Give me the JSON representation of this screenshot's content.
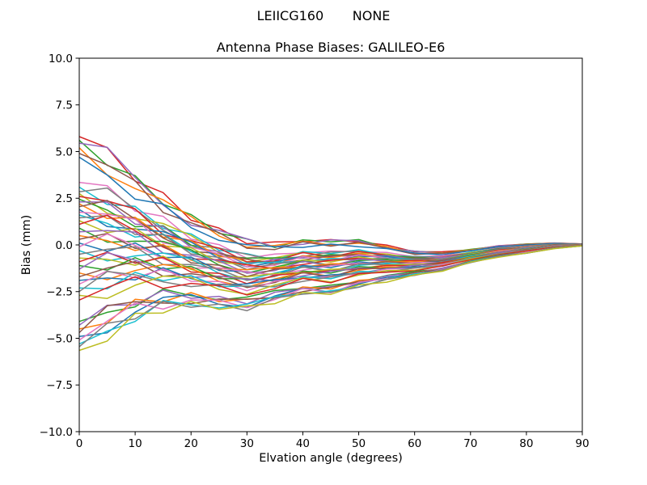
{
  "chart_data": {
    "type": "line",
    "suptitle": "LEIICG160       NONE",
    "title": "Antenna Phase Biases: GALILEO-E6",
    "xlabel": "Elvation angle (degrees)",
    "ylabel": "Bias (mm)",
    "xlim": [
      0,
      90
    ],
    "ylim": [
      -10.0,
      10.0
    ],
    "x_ticks": [
      0,
      10,
      20,
      30,
      40,
      50,
      60,
      70,
      80,
      90
    ],
    "x_tick_labels": [
      "0",
      "10",
      "20",
      "30",
      "40",
      "50",
      "60",
      "70",
      "80",
      "90"
    ],
    "y_ticks": [
      10.0,
      7.5,
      5.0,
      2.5,
      0.0,
      -2.5,
      -5.0,
      -7.5,
      -10.0
    ],
    "y_tick_labels": [
      "10.0",
      "7.5",
      "5.0",
      "2.5",
      "0.0",
      "−2.5",
      "−5.0",
      "−7.5",
      "−10.0"
    ],
    "grid": false,
    "legend": "none",
    "line_width": 1.5,
    "series_note": "About 50 unlabeled per-satellite bias curves spread between -5.7 and +5.8 mm at 0 deg, dipping to about -3.7 mm near 20-30 deg, small hump near 45-50 deg, all converging to 0 mm at 90 deg. Values below are estimated from pixels.",
    "x": [
      0,
      5,
      10,
      15,
      20,
      25,
      30,
      35,
      40,
      45,
      50,
      55,
      60,
      65,
      70,
      75,
      80,
      85,
      90
    ],
    "band_center": [
      0.0,
      0.0,
      -0.2,
      -0.5,
      -0.9,
      -1.3,
      -1.6,
      -1.5,
      -1.2,
      -1.2,
      -1.0,
      -1.0,
      -1.0,
      -0.9,
      -0.6,
      -0.35,
      -0.2,
      -0.05,
      0.0
    ],
    "band_halfwidth": [
      5.8,
      4.85,
      3.8,
      3.0,
      2.4,
      2.1,
      1.85,
      1.55,
      1.45,
      1.45,
      1.25,
      0.95,
      0.65,
      0.5,
      0.35,
      0.3,
      0.25,
      0.15,
      0.05
    ],
    "wiggle_amplitude": 0.25,
    "wiggle_patterns": [
      [
        0,
        0.3,
        -0.2,
        0.4,
        -0.3,
        0.2,
        -0.4,
        0.3,
        -0.2,
        0.1,
        -0.3,
        0.2,
        -0.1,
        0.3,
        -0.2,
        0.1,
        -0.1,
        0.05,
        0
      ],
      [
        0,
        -0.35,
        0.25,
        -0.3,
        0.35,
        -0.2,
        0.3,
        -0.35,
        0.2,
        -0.1,
        0.25,
        -0.3,
        0.2,
        -0.15,
        0.25,
        -0.2,
        0.1,
        -0.05,
        0
      ],
      [
        0,
        0.55,
        0.25,
        -0.25,
        -0.5,
        0.2,
        0.4,
        -0.15,
        -0.35,
        0.3,
        0.15,
        -0.25,
        0.35,
        -0.2,
        -0.1,
        0.25,
        -0.15,
        0.1,
        0
      ],
      [
        0,
        -0.5,
        -0.2,
        0.3,
        0.45,
        -0.2,
        -0.4,
        0.2,
        0.3,
        -0.3,
        -0.1,
        0.3,
        -0.3,
        0.15,
        0.2,
        -0.25,
        0.15,
        -0.1,
        0
      ],
      [
        0,
        0.15,
        0.45,
        -0.4,
        0.1,
        0.35,
        -0.3,
        -0.15,
        0.4,
        -0.25,
        0.3,
        0.1,
        -0.35,
        0.25,
        -0.15,
        -0.2,
        0.2,
        -0.1,
        0
      ],
      [
        0,
        -0.15,
        -0.45,
        0.35,
        -0.2,
        -0.3,
        0.25,
        0.4,
        -0.3,
        0.2,
        -0.35,
        0.15,
        0.25,
        -0.3,
        0.1,
        0.2,
        -0.2,
        0.1,
        0
      ]
    ],
    "palette": [
      "#d62728",
      "#2ca02c",
      "#9467bd",
      "#ff7f0e",
      "#8c564b",
      "#1f77b4",
      "#e377c2",
      "#17becf",
      "#7f7f7f",
      "#bcbd22"
    ],
    "series": [
      {
        "y0": 5.8,
        "a": 1.0,
        "color": "#d62728",
        "wiggle": 0
      },
      {
        "y0": 5.6,
        "a": 0.966,
        "color": "#2ca02c",
        "wiggle": 1
      },
      {
        "y0": 5.45,
        "a": 0.94,
        "color": "#9467bd",
        "wiggle": 2
      },
      {
        "y0": 5.2,
        "a": 0.897,
        "color": "#ff7f0e",
        "wiggle": 3
      },
      {
        "y0": 4.9,
        "a": 0.845,
        "color": "#8c564b",
        "wiggle": 4
      },
      {
        "y0": 4.7,
        "a": 0.81,
        "color": "#1f77b4",
        "wiggle": 5
      },
      {
        "y0": 3.35,
        "a": 0.578,
        "color": "#e377c2",
        "wiggle": 0
      },
      {
        "y0": 3.1,
        "a": 0.534,
        "color": "#17becf",
        "wiggle": 1
      },
      {
        "y0": 2.85,
        "a": 0.491,
        "color": "#7f7f7f",
        "wiggle": 2
      },
      {
        "y0": 2.75,
        "a": 0.474,
        "color": "#bcbd22",
        "wiggle": 3
      },
      {
        "y0": 2.6,
        "a": 0.448,
        "color": "#d62728",
        "wiggle": 4
      },
      {
        "y0": 2.45,
        "a": 0.422,
        "color": "#2ca02c",
        "wiggle": 5
      },
      {
        "y0": 2.3,
        "a": 0.397,
        "color": "#9467bd",
        "wiggle": 0
      },
      {
        "y0": 2.2,
        "a": 0.379,
        "color": "#ff7f0e",
        "wiggle": 1
      },
      {
        "y0": 2.05,
        "a": 0.353,
        "color": "#8c564b",
        "wiggle": 2
      },
      {
        "y0": 1.9,
        "a": 0.328,
        "color": "#1f77b4",
        "wiggle": 3
      },
      {
        "y0": 1.75,
        "a": 0.302,
        "color": "#e377c2",
        "wiggle": 4
      },
      {
        "y0": 1.6,
        "a": 0.276,
        "color": "#17becf",
        "wiggle": 5
      },
      {
        "y0": 1.45,
        "a": 0.25,
        "color": "#7f7f7f",
        "wiggle": 0
      },
      {
        "y0": 1.3,
        "a": 0.224,
        "color": "#bcbd22",
        "wiggle": 1
      },
      {
        "y0": 1.1,
        "a": 0.19,
        "color": "#d62728",
        "wiggle": 2
      },
      {
        "y0": 0.9,
        "a": 0.155,
        "color": "#2ca02c",
        "wiggle": 3
      },
      {
        "y0": 0.7,
        "a": 0.121,
        "color": "#9467bd",
        "wiggle": 4
      },
      {
        "y0": 0.5,
        "a": 0.086,
        "color": "#ff7f0e",
        "wiggle": 5
      },
      {
        "y0": 0.3,
        "a": 0.052,
        "color": "#8c564b",
        "wiggle": 0
      },
      {
        "y0": 0.1,
        "a": 0.017,
        "color": "#1f77b4",
        "wiggle": 1
      },
      {
        "y0": -0.1,
        "a": -0.017,
        "color": "#e377c2",
        "wiggle": 2
      },
      {
        "y0": -0.3,
        "a": -0.052,
        "color": "#17becf",
        "wiggle": 3
      },
      {
        "y0": -0.5,
        "a": -0.086,
        "color": "#7f7f7f",
        "wiggle": 4
      },
      {
        "y0": -0.7,
        "a": -0.121,
        "color": "#bcbd22",
        "wiggle": 5
      },
      {
        "y0": -0.9,
        "a": -0.155,
        "color": "#d62728",
        "wiggle": 0
      },
      {
        "y0": -1.1,
        "a": -0.19,
        "color": "#2ca02c",
        "wiggle": 1
      },
      {
        "y0": -1.3,
        "a": -0.224,
        "color": "#9467bd",
        "wiggle": 2
      },
      {
        "y0": -1.5,
        "a": -0.259,
        "color": "#ff7f0e",
        "wiggle": 3
      },
      {
        "y0": -1.7,
        "a": -0.293,
        "color": "#8c564b",
        "wiggle": 4
      },
      {
        "y0": -1.9,
        "a": -0.328,
        "color": "#1f77b4",
        "wiggle": 5
      },
      {
        "y0": -2.1,
        "a": -0.362,
        "color": "#e377c2",
        "wiggle": 0
      },
      {
        "y0": -2.3,
        "a": -0.397,
        "color": "#17becf",
        "wiggle": 1
      },
      {
        "y0": -2.5,
        "a": -0.431,
        "color": "#7f7f7f",
        "wiggle": 2
      },
      {
        "y0": -2.7,
        "a": -0.466,
        "color": "#bcbd22",
        "wiggle": 3
      },
      {
        "y0": -2.95,
        "a": -0.509,
        "color": "#d62728",
        "wiggle": 4
      },
      {
        "y0": -4.1,
        "a": -0.707,
        "color": "#2ca02c",
        "wiggle": 5
      },
      {
        "y0": -4.3,
        "a": -0.741,
        "color": "#9467bd",
        "wiggle": 0
      },
      {
        "y0": -4.5,
        "a": -0.776,
        "color": "#ff7f0e",
        "wiggle": 1
      },
      {
        "y0": -4.7,
        "a": -0.81,
        "color": "#8c564b",
        "wiggle": 2
      },
      {
        "y0": -4.9,
        "a": -0.845,
        "color": "#1f77b4",
        "wiggle": 3
      },
      {
        "y0": -5.1,
        "a": -0.879,
        "color": "#e377c2",
        "wiggle": 4
      },
      {
        "y0": -5.3,
        "a": -0.914,
        "color": "#17becf",
        "wiggle": 5
      },
      {
        "y0": -5.45,
        "a": -0.94,
        "color": "#7f7f7f",
        "wiggle": 0
      },
      {
        "y0": -5.65,
        "a": -0.974,
        "color": "#bcbd22",
        "wiggle": 1
      }
    ]
  }
}
